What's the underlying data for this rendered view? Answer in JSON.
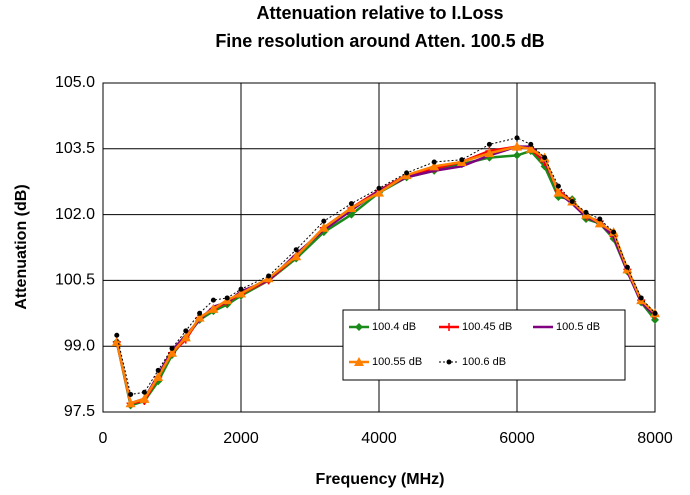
{
  "chart_data": {
    "type": "line",
    "title": "Attenuation relative to I.Loss",
    "subtitle": "Fine resolution around Atten. 100.5 dB",
    "x_label": "Frequency (MHz)",
    "y_label": "Attenuation (dB)",
    "x": [
      200,
      400,
      600,
      800,
      1000,
      1200,
      1400,
      1600,
      1800,
      2000,
      2400,
      2800,
      3200,
      3600,
      4000,
      4400,
      4800,
      5200,
      5600,
      6000,
      6200,
      6400,
      6600,
      6800,
      7000,
      7200,
      7400,
      7600,
      7800,
      8000
    ],
    "series": [
      {
        "name": "100.4 dB",
        "color": "#1a8a1a",
        "marker": "diamond",
        "dash": "solid",
        "values": [
          99.1,
          97.65,
          97.75,
          98.2,
          98.8,
          99.2,
          99.6,
          99.8,
          99.95,
          100.15,
          100.5,
          101.0,
          101.6,
          102.0,
          102.5,
          102.85,
          103.0,
          103.15,
          103.3,
          103.35,
          103.45,
          103.1,
          102.4,
          102.35,
          101.9,
          101.8,
          101.45,
          100.7,
          100.0,
          99.6
        ]
      },
      {
        "name": "100.45 dB",
        "color": "#ff0000",
        "marker": "plus",
        "dash": "solid",
        "values": [
          99.1,
          97.7,
          97.75,
          98.3,
          98.85,
          99.15,
          99.65,
          99.85,
          100.0,
          100.2,
          100.5,
          101.05,
          101.7,
          102.15,
          102.55,
          102.9,
          103.05,
          103.2,
          103.45,
          103.55,
          103.5,
          103.2,
          102.55,
          102.3,
          101.95,
          101.85,
          101.5,
          100.75,
          100.05,
          99.7
        ]
      },
      {
        "name": "100.5 dB",
        "color": "#800080",
        "marker": "none",
        "dash": "solid",
        "values": [
          99.1,
          97.7,
          97.8,
          98.35,
          98.9,
          99.25,
          99.6,
          99.9,
          100.0,
          100.25,
          100.5,
          101.1,
          101.65,
          102.1,
          102.55,
          102.85,
          103.0,
          103.1,
          103.35,
          103.55,
          103.55,
          103.25,
          102.5,
          102.25,
          101.95,
          101.8,
          101.5,
          100.7,
          100.0,
          99.7
        ]
      },
      {
        "name": "100.55 dB",
        "color": "#ff8000",
        "marker": "triangle",
        "dash": "solid",
        "values": [
          99.1,
          97.7,
          97.8,
          98.3,
          98.85,
          99.2,
          99.65,
          99.85,
          100.05,
          100.2,
          100.55,
          101.05,
          101.7,
          102.15,
          102.5,
          102.9,
          103.1,
          103.2,
          103.4,
          103.55,
          103.5,
          103.3,
          102.5,
          102.3,
          102.0,
          101.8,
          101.6,
          100.75,
          100.05,
          99.75
        ]
      },
      {
        "name": "100.6 dB",
        "color": "#000000",
        "marker": "circle",
        "dash": "dotted",
        "values": [
          99.25,
          97.9,
          97.95,
          98.45,
          98.95,
          99.35,
          99.75,
          100.05,
          100.1,
          100.3,
          100.6,
          101.2,
          101.85,
          102.25,
          102.6,
          102.95,
          103.2,
          103.25,
          103.6,
          103.75,
          103.6,
          103.3,
          102.65,
          102.3,
          102.05,
          101.9,
          101.6,
          100.8,
          100.1,
          99.75
        ]
      }
    ],
    "xlim": [
      0,
      8000
    ],
    "xticks": [
      0,
      2000,
      4000,
      6000,
      8000
    ],
    "ylim": [
      97.5,
      105
    ],
    "yticks": [
      97.5,
      {
        "value": 99,
        "label": "99.0"
      },
      100.5,
      {
        "value": 102,
        "label": "102.0"
      },
      103.5,
      {
        "value": 105,
        "label": "105.0"
      }
    ],
    "grid": true
  }
}
